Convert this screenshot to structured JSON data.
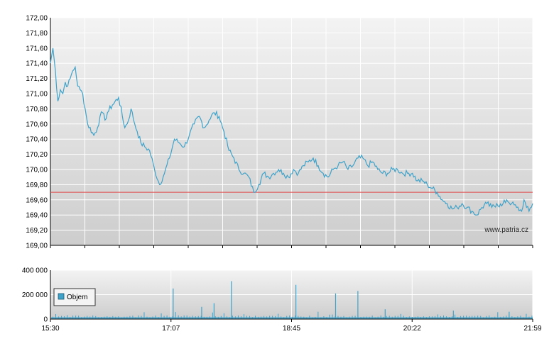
{
  "colors": {
    "price_line": "#3fa2c9",
    "reference_line": "#e0484b",
    "volume_bar": "#3fa2c9",
    "volume_legend_swatch": "#3fa2c9",
    "plot_bg_top": "#f3f3f3",
    "plot_bg_bottom": "#cdcdcd",
    "grid": "#ffffff",
    "axis": "#000000"
  },
  "watermark": "www.patria.cz",
  "chart_data": [
    {
      "type": "line",
      "title": "",
      "y_ticks": [
        "172,00",
        "171,80",
        "171,60",
        "171,40",
        "171,20",
        "171,00",
        "170,80",
        "170,60",
        "170,40",
        "170,20",
        "170,00",
        "169,80",
        "169,60",
        "169,40",
        "169,20",
        "169,00"
      ],
      "ylim": [
        169.0,
        172.0
      ],
      "xlim_minutes": [
        930,
        1319
      ],
      "grid": true,
      "reference_value": 169.7,
      "series": [
        {
          "x": [
            930,
            932,
            934,
            936,
            938,
            940,
            942,
            944,
            946,
            948,
            950,
            952,
            954,
            956,
            958,
            960,
            965,
            968,
            970,
            972,
            974,
            976,
            980,
            985,
            990,
            993,
            995,
            998,
            1000,
            1003,
            1006,
            1010,
            1014,
            1018,
            1022,
            1026,
            1030,
            1034,
            1038,
            1042,
            1046,
            1050,
            1054,
            1058,
            1062,
            1066,
            1070,
            1074,
            1078,
            1082,
            1086,
            1090,
            1094,
            1098,
            1102,
            1106,
            1110,
            1114,
            1118,
            1122,
            1126,
            1130,
            1134,
            1138,
            1142,
            1146,
            1150,
            1154,
            1158,
            1162,
            1166,
            1170,
            1174,
            1178,
            1182,
            1186,
            1190,
            1194,
            1198,
            1202,
            1206,
            1210,
            1214,
            1218,
            1222,
            1226,
            1230,
            1234,
            1238,
            1242,
            1246,
            1250,
            1254,
            1258,
            1262,
            1266,
            1270,
            1274,
            1278,
            1282,
            1286,
            1290,
            1294,
            1298,
            1302,
            1306,
            1310,
            1312,
            1314,
            1316,
            1319
          ],
          "values": [
            171.4,
            171.6,
            171.3,
            170.9,
            171.05,
            171.0,
            171.15,
            171.1,
            171.2,
            171.3,
            171.35,
            171.1,
            171.05,
            171.0,
            170.8,
            170.6,
            170.45,
            170.55,
            170.7,
            170.75,
            170.65,
            170.75,
            170.85,
            170.95,
            170.55,
            170.65,
            170.8,
            170.6,
            170.5,
            170.35,
            170.3,
            170.25,
            170.0,
            169.8,
            169.95,
            170.15,
            170.4,
            170.35,
            170.3,
            170.45,
            170.6,
            170.7,
            170.55,
            170.65,
            170.75,
            170.7,
            170.5,
            170.25,
            170.15,
            170.0,
            169.95,
            169.9,
            169.7,
            169.8,
            169.95,
            169.9,
            169.95,
            170.0,
            169.95,
            169.9,
            170.0,
            169.95,
            170.05,
            170.1,
            170.15,
            170.05,
            169.95,
            169.9,
            170.0,
            170.05,
            170.1,
            170.0,
            170.05,
            170.15,
            170.15,
            170.05,
            170.1,
            170.0,
            169.95,
            169.95,
            170.0,
            170.0,
            169.95,
            169.95,
            169.95,
            169.85,
            169.85,
            169.8,
            169.75,
            169.7,
            169.6,
            169.55,
            169.48,
            169.5,
            169.55,
            169.5,
            169.45,
            169.4,
            169.5,
            169.55,
            169.5,
            169.55,
            169.52,
            169.6,
            169.55,
            169.5,
            169.45,
            169.6,
            169.5,
            169.45,
            169.55
          ]
        }
      ]
    },
    {
      "type": "bar",
      "title": "",
      "legend": "Objem",
      "legend_position": "bottom-left",
      "y_ticks": [
        "400 000",
        "200 000",
        "0"
      ],
      "ylim": [
        0,
        400000
      ],
      "x_ticks": [
        "15:30",
        "17:07",
        "18:45",
        "20:22",
        "21:59"
      ],
      "xlim_minutes": [
        930,
        1319
      ],
      "grid": true,
      "spikes": [
        {
          "x": 1029,
          "value": 250000
        },
        {
          "x": 1052,
          "value": 100000
        },
        {
          "x": 1062,
          "value": 130000
        },
        {
          "x": 1076,
          "value": 310000
        },
        {
          "x": 1128,
          "value": 280000
        },
        {
          "x": 1160,
          "value": 210000
        },
        {
          "x": 1178,
          "value": 230000
        },
        {
          "x": 1200,
          "value": 80000
        },
        {
          "x": 1255,
          "value": 70000
        },
        {
          "x": 1300,
          "value": 60000
        }
      ],
      "baseline_volume": 15000
    }
  ]
}
